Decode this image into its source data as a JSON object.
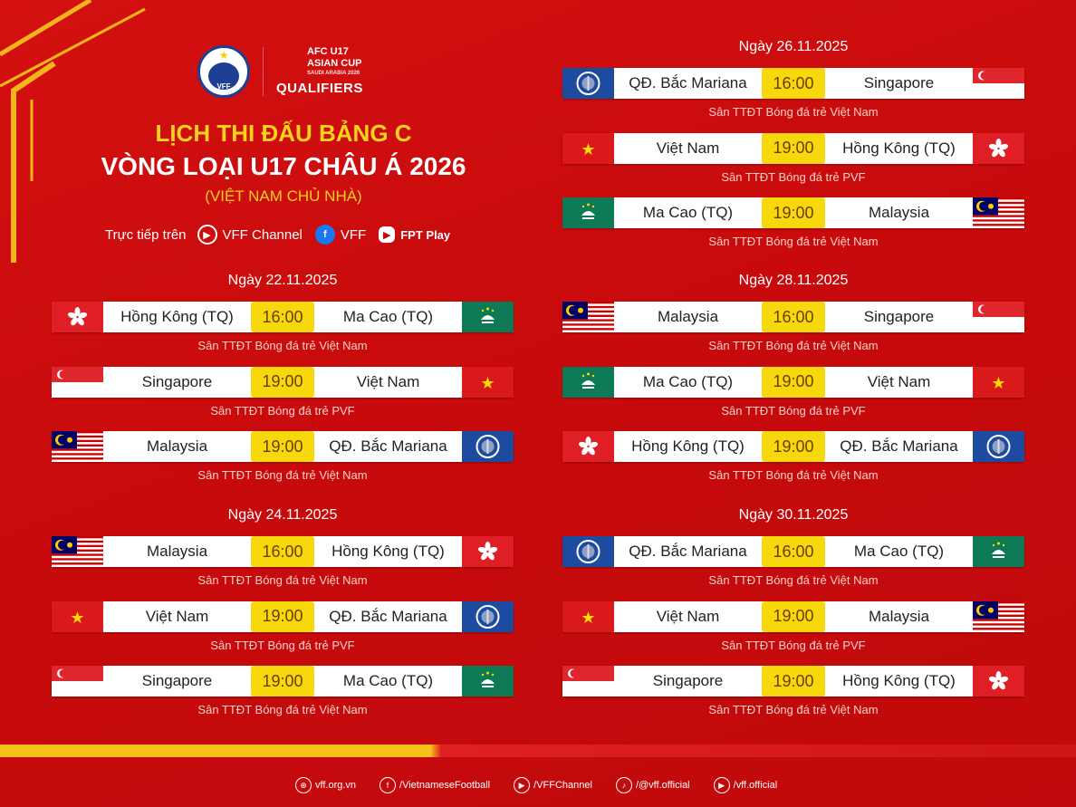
{
  "header": {
    "vff_logo_text": "VFF",
    "afc_line1": "AFC U17",
    "afc_line2": "ASIAN CUP",
    "afc_line3": "SAUDI ARABIA 2026",
    "afc_qualifiers": "QUALIFIERS",
    "title_line1": "LỊCH THI ĐẤU BẢNG C",
    "title_line2": "VÒNG LOẠI U17 CHÂU Á 2026",
    "title_line3": "(VIỆT NAM CHỦ NHÀ)",
    "live_label": "Trực tiếp trên",
    "channels": [
      {
        "icon": "youtube-icon",
        "label": "VFF Channel"
      },
      {
        "icon": "facebook-icon",
        "label": "VFF"
      },
      {
        "icon": "fpt-play-icon",
        "label": "FPT Play"
      }
    ]
  },
  "colors": {
    "background": "#c90b0d",
    "accent_yellow": "#f8d21c",
    "time_box": "#f6d80c"
  },
  "days": [
    {
      "date": "Ngày 22.11.2025",
      "matches": [
        {
          "home": "Hồng Kông (TQ)",
          "home_flag": "hk",
          "time": "16:00",
          "away": "Ma Cao (TQ)",
          "away_flag": "mo",
          "venue": "Sân TTĐT Bóng đá trẻ Việt Nam"
        },
        {
          "home": "Singapore",
          "home_flag": "sg",
          "time": "19:00",
          "away": "Việt Nam",
          "away_flag": "vn",
          "venue": "Sân TTĐT Bóng đá trẻ PVF"
        },
        {
          "home": "Malaysia",
          "home_flag": "my",
          "time": "19:00",
          "away": "QĐ. Bắc Mariana",
          "away_flag": "nmi",
          "venue": "Sân TTĐT Bóng đá trẻ Việt Nam"
        }
      ]
    },
    {
      "date": "Ngày 24.11.2025",
      "matches": [
        {
          "home": "Malaysia",
          "home_flag": "my",
          "time": "16:00",
          "away": "Hồng Kông (TQ)",
          "away_flag": "hk",
          "venue": "Sân TTĐT Bóng đá trẻ Việt Nam"
        },
        {
          "home": "Việt Nam",
          "home_flag": "vn",
          "time": "19:00",
          "away": "QĐ. Bắc Mariana",
          "away_flag": "nmi",
          "venue": "Sân TTĐT Bóng đá trẻ PVF"
        },
        {
          "home": "Singapore",
          "home_flag": "sg",
          "time": "19:00",
          "away": "Ma Cao (TQ)",
          "away_flag": "mo",
          "venue": "Sân TTĐT Bóng đá trẻ Việt Nam"
        }
      ]
    },
    {
      "date": "Ngày 26.11.2025",
      "matches": [
        {
          "home": "QĐ. Bắc Mariana",
          "home_flag": "nmi",
          "time": "16:00",
          "away": "Singapore",
          "away_flag": "sg",
          "venue": "Sân TTĐT Bóng đá trẻ Việt Nam"
        },
        {
          "home": "Việt Nam",
          "home_flag": "vn",
          "time": "19:00",
          "away": "Hồng Kông (TQ)",
          "away_flag": "hk",
          "venue": "Sân TTĐT Bóng đá trẻ PVF"
        },
        {
          "home": "Ma Cao (TQ)",
          "home_flag": "mo",
          "time": "19:00",
          "away": "Malaysia",
          "away_flag": "my",
          "venue": "Sân TTĐT Bóng đá trẻ Việt Nam"
        }
      ]
    },
    {
      "date": "Ngày 28.11.2025",
      "matches": [
        {
          "home": "Malaysia",
          "home_flag": "my",
          "time": "16:00",
          "away": "Singapore",
          "away_flag": "sg",
          "venue": "Sân TTĐT Bóng đá trẻ Việt Nam"
        },
        {
          "home": "Ma Cao (TQ)",
          "home_flag": "mo",
          "time": "19:00",
          "away": "Việt Nam",
          "away_flag": "vn",
          "venue": "Sân TTĐT Bóng đá trẻ PVF"
        },
        {
          "home": "Hồng Kông (TQ)",
          "home_flag": "hk",
          "time": "19:00",
          "away": "QĐ. Bắc Mariana",
          "away_flag": "nmi",
          "venue": "Sân TTĐT Bóng đá trẻ Việt Nam"
        }
      ]
    },
    {
      "date": "Ngày 30.11.2025",
      "matches": [
        {
          "home": "QĐ. Bắc Mariana",
          "home_flag": "nmi",
          "time": "16:00",
          "away": "Ma Cao (TQ)",
          "away_flag": "mo",
          "venue": "Sân TTĐT Bóng đá trẻ Việt Nam"
        },
        {
          "home": "Việt Nam",
          "home_flag": "vn",
          "time": "19:00",
          "away": "Malaysia",
          "away_flag": "my",
          "venue": "Sân TTĐT Bóng đá trẻ PVF"
        },
        {
          "home": "Singapore",
          "home_flag": "sg",
          "time": "19:00",
          "away": "Hồng Kông (TQ)",
          "away_flag": "hk",
          "venue": "Sân TTĐT Bóng đá trẻ Việt Nam"
        }
      ]
    }
  ],
  "footer": [
    {
      "icon": "globe-icon",
      "label": "vff.org.vn"
    },
    {
      "icon": "facebook-icon",
      "label": "/VietnameseFootball"
    },
    {
      "icon": "youtube-icon",
      "label": "/VFFChannel"
    },
    {
      "icon": "tiktok-icon",
      "label": "/@vff.official"
    },
    {
      "icon": "play-icon",
      "label": "/vff.official"
    }
  ]
}
